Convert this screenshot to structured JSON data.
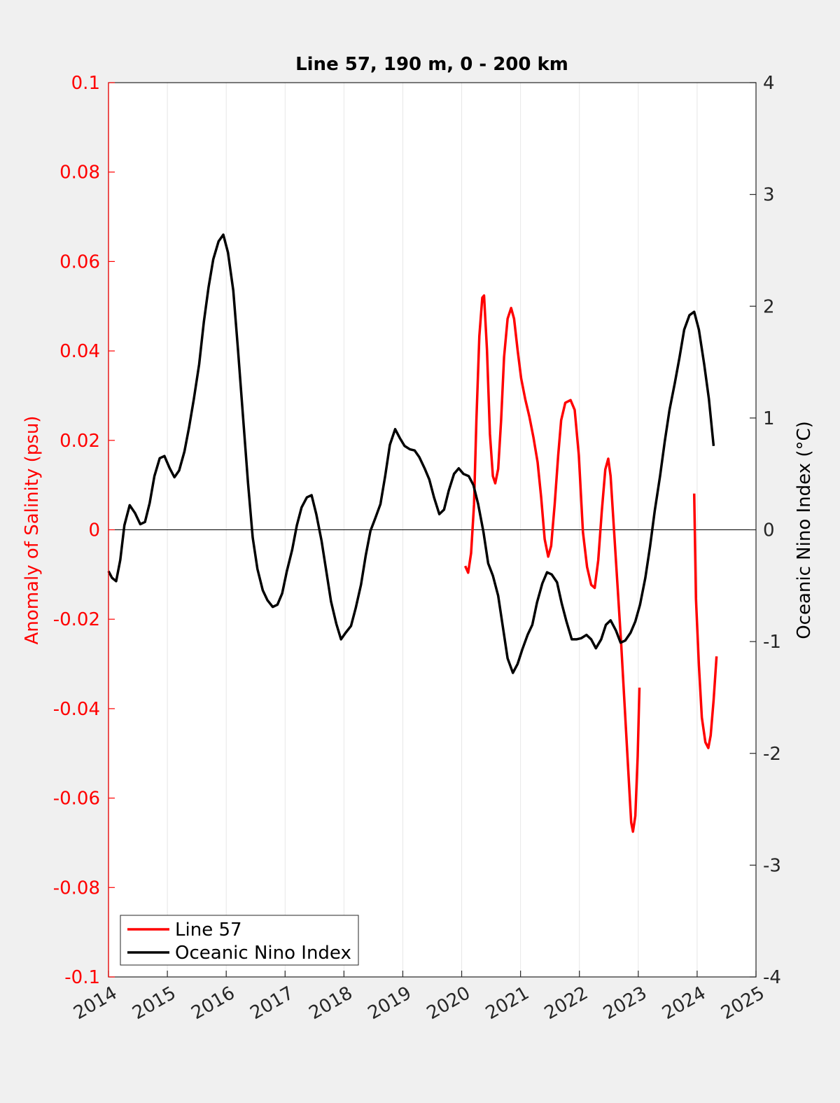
{
  "chart_data": {
    "type": "line",
    "title": "Line 57, 190 m, 0 - 200 km",
    "y_label": "Anomaly of Salinity (psu)",
    "y2_label": "Oceanic Nino Index (°C)",
    "xlim": [
      2014,
      2025
    ],
    "xticks": [
      2014,
      2015,
      2016,
      2017,
      2018,
      2019,
      2020,
      2021,
      2022,
      2023,
      2024,
      2025
    ],
    "ylim": [
      -0.1,
      0.1
    ],
    "yticks": [
      -0.1,
      -0.08,
      -0.06,
      -0.04,
      -0.02,
      0,
      0.02,
      0.04,
      0.06,
      0.08,
      0.1
    ],
    "y2lim": [
      -4,
      4
    ],
    "y2ticks": [
      -4,
      -3,
      -2,
      -1,
      0,
      1,
      2,
      3,
      4
    ],
    "hline": 0,
    "grid": "x",
    "legend": "lower left",
    "series": [
      {
        "name": "Line 57",
        "color": "#ff0000",
        "axis": "y",
        "x": [
          2020.06,
          2020.11,
          2020.16,
          2020.21,
          2020.25,
          2020.3,
          2020.35,
          2020.38,
          2020.43,
          2020.48,
          2020.53,
          2020.57,
          2020.62,
          2020.67,
          2020.72,
          2020.78,
          2020.84,
          2020.89,
          2020.95,
          2021.01,
          2021.08,
          2021.15,
          2021.22,
          2021.29,
          2021.35,
          2021.41,
          2021.47,
          2021.52,
          2021.58,
          2021.64,
          2021.69,
          2021.76,
          2021.85,
          2021.92,
          2021.99,
          2022.06,
          2022.13,
          2022.2,
          2022.26,
          2022.32,
          2022.38,
          2022.44,
          2022.49,
          2022.53,
          2022.59,
          2022.65,
          2022.71,
          2022.77,
          2022.83,
          2022.88,
          2022.91,
          2022.95,
          2022.99,
          2023.02,
          null,
          2023.95,
          2023.98,
          2024.03,
          2024.08,
          2024.14,
          2024.19,
          2024.23,
          2024.28,
          2024.33
        ],
        "values": [
          -0.0081,
          -0.0096,
          -0.0052,
          0.0057,
          0.0245,
          0.0433,
          0.0519,
          0.0524,
          0.0402,
          0.0214,
          0.012,
          0.0104,
          0.0136,
          0.0245,
          0.0386,
          0.0472,
          0.0496,
          0.0472,
          0.0402,
          0.0339,
          0.0292,
          0.0253,
          0.0206,
          0.0151,
          0.0073,
          -0.0021,
          -0.006,
          -0.0036,
          0.0057,
          0.0167,
          0.0245,
          0.0284,
          0.029,
          0.0268,
          0.0167,
          -0.0005,
          -0.0083,
          -0.0123,
          -0.013,
          -0.0068,
          0.0041,
          0.0135,
          0.0159,
          0.012,
          -0.0005,
          -0.013,
          -0.0256,
          -0.0397,
          -0.0538,
          -0.0655,
          -0.0675,
          -0.064,
          -0.0507,
          -0.0353,
          null,
          0.0081,
          -0.0154,
          -0.0303,
          -0.042,
          -0.0475,
          -0.0488,
          -0.046,
          -0.0381,
          -0.0283
        ]
      },
      {
        "name": "Oceanic Nino Index",
        "color": "#000000",
        "axis": "y2",
        "x": [
          2014.0,
          2014.06,
          2014.13,
          2014.2,
          2014.27,
          2014.36,
          2014.45,
          2014.54,
          2014.62,
          2014.7,
          2014.78,
          2014.87,
          2014.95,
          2015.04,
          2015.12,
          2015.2,
          2015.29,
          2015.37,
          2015.45,
          2015.54,
          2015.62,
          2015.7,
          2015.78,
          2015.87,
          2015.95,
          2016.03,
          2016.12,
          2016.2,
          2016.29,
          2016.37,
          2016.45,
          2016.53,
          2016.62,
          2016.7,
          2016.79,
          2016.87,
          2016.95,
          2017.03,
          2017.12,
          2017.2,
          2017.28,
          2017.37,
          2017.45,
          2017.53,
          2017.62,
          2017.7,
          2017.78,
          2017.87,
          2017.95,
          2018.03,
          2018.12,
          2018.2,
          2018.29,
          2018.37,
          2018.45,
          2018.53,
          2018.62,
          2018.7,
          2018.78,
          2018.87,
          2018.95,
          2019.03,
          2019.12,
          2019.2,
          2019.28,
          2019.37,
          2019.45,
          2019.53,
          2019.62,
          2019.7,
          2019.78,
          2019.87,
          2019.95,
          2020.03,
          2020.12,
          2020.2,
          2020.28,
          2020.37,
          2020.45,
          2020.53,
          2020.62,
          2020.7,
          2020.78,
          2020.87,
          2020.95,
          2021.03,
          2021.12,
          2021.2,
          2021.28,
          2021.37,
          2021.45,
          2021.53,
          2021.62,
          2021.7,
          2021.78,
          2021.87,
          2021.95,
          2022.03,
          2022.12,
          2022.2,
          2022.28,
          2022.37,
          2022.45,
          2022.53,
          2022.62,
          2022.7,
          2022.78,
          2022.87,
          2022.95,
          2023.03,
          2023.12,
          2023.2,
          2023.28,
          2023.37,
          2023.45,
          2023.53,
          2023.62,
          2023.7,
          2023.78,
          2023.87,
          2023.95,
          2024.03,
          2024.12,
          2024.2,
          2024.28
        ],
        "values": [
          -0.37,
          -0.43,
          -0.46,
          -0.27,
          0.04,
          0.22,
          0.15,
          0.05,
          0.07,
          0.24,
          0.48,
          0.64,
          0.66,
          0.55,
          0.47,
          0.53,
          0.7,
          0.92,
          1.17,
          1.48,
          1.86,
          2.17,
          2.42,
          2.58,
          2.64,
          2.48,
          2.14,
          1.61,
          0.98,
          0.42,
          -0.07,
          -0.35,
          -0.54,
          -0.63,
          -0.69,
          -0.67,
          -0.57,
          -0.37,
          -0.18,
          0.04,
          0.2,
          0.29,
          0.31,
          0.14,
          -0.1,
          -0.37,
          -0.64,
          -0.84,
          -0.98,
          -0.92,
          -0.86,
          -0.7,
          -0.49,
          -0.23,
          -0.01,
          0.1,
          0.23,
          0.48,
          0.76,
          0.9,
          0.82,
          0.75,
          0.72,
          0.71,
          0.65,
          0.55,
          0.45,
          0.29,
          0.14,
          0.18,
          0.35,
          0.5,
          0.55,
          0.5,
          0.48,
          0.4,
          0.23,
          -0.02,
          -0.3,
          -0.41,
          -0.59,
          -0.87,
          -1.15,
          -1.28,
          -1.2,
          -1.07,
          -0.94,
          -0.85,
          -0.65,
          -0.48,
          -0.38,
          -0.4,
          -0.47,
          -0.66,
          -0.82,
          -0.98,
          -0.98,
          -0.97,
          -0.94,
          -0.98,
          -1.06,
          -0.98,
          -0.85,
          -0.81,
          -0.9,
          -1.01,
          -0.99,
          -0.92,
          -0.82,
          -0.67,
          -0.43,
          -0.15,
          0.17,
          0.48,
          0.79,
          1.07,
          1.31,
          1.54,
          1.79,
          1.92,
          1.95,
          1.79,
          1.48,
          1.17,
          0.75
        ]
      }
    ]
  }
}
